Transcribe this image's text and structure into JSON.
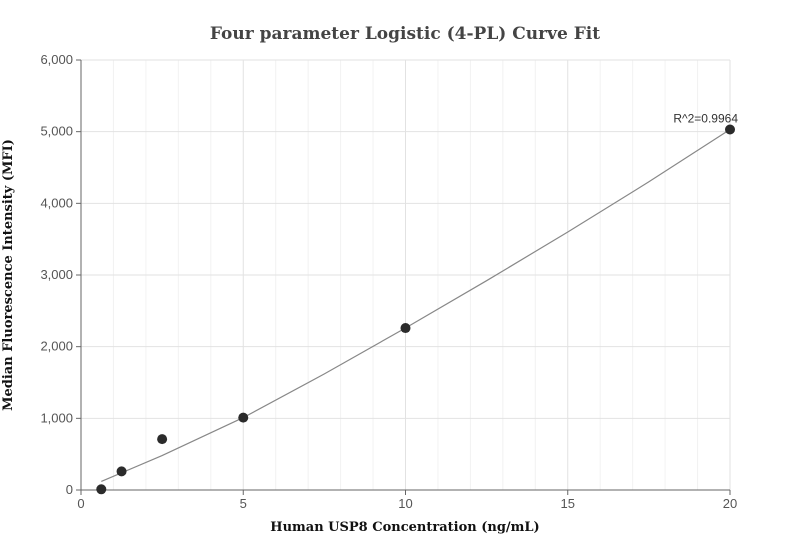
{
  "chart_data": {
    "type": "scatter",
    "title": "Four parameter Logistic (4-PL) Curve Fit",
    "xlabel": "Human USP8 Concentration (ng/mL)",
    "ylabel": "Median Fluorescence Intensity (MFI)",
    "xlim": [
      0,
      20
    ],
    "ylim": [
      0,
      6000
    ],
    "x_ticks": [
      0,
      5,
      10,
      15,
      20
    ],
    "x_tick_labels": [
      "0",
      "5",
      "10",
      "15",
      "20"
    ],
    "y_ticks": [
      0,
      1000,
      2000,
      3000,
      4000,
      5000,
      6000
    ],
    "y_tick_labels": [
      "0",
      "1,000",
      "2,000",
      "3,000",
      "4,000",
      "5,000",
      "6,000"
    ],
    "grid": true,
    "series": [
      {
        "type": "scatter",
        "x": [
          0.625,
          1.25,
          2.5,
          5,
          10,
          20
        ],
        "y": [
          10,
          260,
          710,
          1010,
          2260,
          5030
        ],
        "color": "#2b2b2b"
      },
      {
        "type": "line",
        "x": [
          0.625,
          1.25,
          2.5,
          5,
          7.5,
          10,
          12.5,
          15,
          17.5,
          20
        ],
        "y": [
          120,
          240,
          480,
          1010,
          1620,
          2260,
          2920,
          3600,
          4300,
          5030
        ],
        "color": "#888888"
      }
    ],
    "annotations": [
      {
        "text": "R^2=0.9964",
        "x": 20,
        "y": 5030
      }
    ]
  }
}
